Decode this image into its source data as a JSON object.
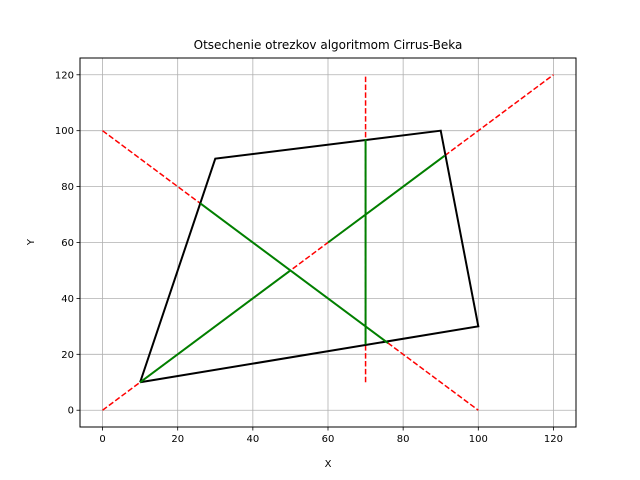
{
  "chart_data": {
    "type": "line",
    "title": "Otsechenie otrezkov algoritmom Cirrus-Beka",
    "xlabel": "X",
    "ylabel": "Y",
    "xlim": [
      -6,
      126
    ],
    "ylim": [
      -6,
      126
    ],
    "grid": true,
    "x_ticks": [
      0,
      20,
      40,
      60,
      80,
      100,
      120
    ],
    "y_ticks": [
      0,
      20,
      40,
      60,
      80,
      100,
      120
    ],
    "colors": {
      "polygon": "#000000",
      "original": "#ff0000",
      "clipped": "#008000",
      "grid": "#b0b0b0"
    },
    "polygon": {
      "points": [
        [
          10,
          10
        ],
        [
          100,
          30
        ],
        [
          90,
          100
        ],
        [
          30,
          90
        ],
        [
          10,
          10
        ]
      ]
    },
    "original_segments": [
      [
        [
          0,
          0
        ],
        [
          120,
          120
        ]
      ],
      [
        [
          0,
          100
        ],
        [
          100,
          0
        ]
      ],
      [
        [
          70,
          10
        ],
        [
          70,
          120
        ]
      ],
      [
        [
          10,
          10
        ],
        [
          50,
          50
        ]
      ],
      [
        [
          60,
          60
        ],
        [
          90,
          90
        ]
      ]
    ],
    "clipped_segments": [
      [
        [
          10,
          10
        ],
        [
          50,
          50
        ]
      ],
      [
        [
          60,
          60
        ],
        [
          91,
          91
        ]
      ],
      [
        [
          26,
          74
        ],
        [
          76,
          24
        ]
      ],
      [
        [
          70,
          23.5
        ],
        [
          70,
          97
        ]
      ]
    ]
  }
}
